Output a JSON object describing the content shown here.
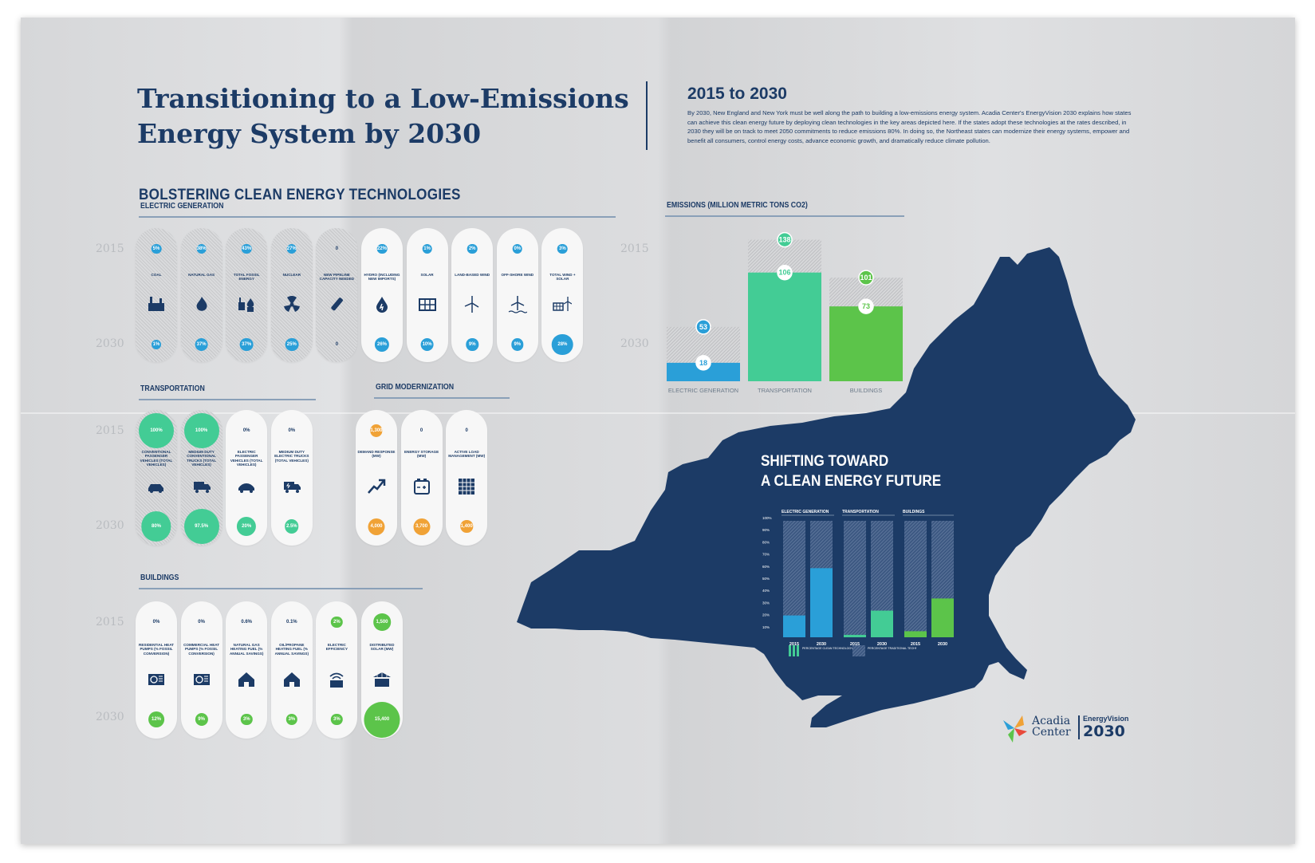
{
  "title_line1": "Transitioning to a Low-Emissions",
  "title_line2": "Energy System by 2030",
  "period_heading": "2015 to 2030",
  "intro": "By 2030, New England and New York must be well along the path to building a low-emissions energy system. Acadia Center's EnergyVision 2030 explains how states can achieve this clean energy future by deploying clean technologies in the key areas depicted here. If the states adopt these technologies at the rates described, in 2030 they will be on track to meet 2050 commitments to reduce emissions 80%. In doing so, the Northeast states can modernize their energy systems, empower and benefit all consumers, control energy costs, advance economic growth, and dramatically reduce climate pollution.",
  "main_heading": "BOLSTERING CLEAN ENERGY TECHNOLOGIES",
  "years": {
    "start": "2015",
    "end": "2030"
  },
  "colors": {
    "navy": "#1c3b66",
    "blue": "#2a9fd8",
    "teal": "#43cc95",
    "green": "#5cc44a",
    "orange": "#f0a236"
  },
  "electric": {
    "heading": "ELECTRIC GENERATION",
    "pills": [
      {
        "label": "COAL",
        "icon": "power-plant-icon",
        "start": "5%",
        "end": "1%",
        "style": "hatch",
        "color": "blue",
        "endSize": 0.35
      },
      {
        "label": "NATURAL GAS",
        "icon": "flame-icon",
        "start": "38%",
        "end": "37%",
        "style": "hatch",
        "color": "blue",
        "endSize": 0.6
      },
      {
        "label": "TOTAL FOSSIL ENERGY",
        "icon": "fossil-icon",
        "start": "43%",
        "end": "37%",
        "style": "hatch",
        "color": "blue",
        "endSize": 0.6
      },
      {
        "label": "NUCLEAR",
        "icon": "nuclear-icon",
        "start": "27%",
        "end": "25%",
        "style": "hatch",
        "color": "blue",
        "endSize": 0.6
      },
      {
        "label": "NEW PIPELINE CAPACITY NEEDED",
        "icon": "pipeline-icon",
        "start": "0",
        "end": "0",
        "style": "hatch",
        "color": "none",
        "endSize": 0
      },
      {
        "label": "HYDRO (INCLUDING NEW IMPORTS)",
        "icon": "hydro-drop-icon",
        "start": "22%",
        "end": "26%",
        "style": "white",
        "color": "blue",
        "endSize": 0.65
      },
      {
        "label": "SOLAR",
        "icon": "solar-panel-icon",
        "start": "1%",
        "end": "10%",
        "style": "white",
        "color": "blue",
        "endSize": 0.6
      },
      {
        "label": "LAND-BASED WIND",
        "icon": "wind-turbine-icon",
        "start": "2%",
        "end": "9%",
        "style": "white",
        "color": "blue",
        "endSize": 0.55
      },
      {
        "label": "OFF-SHORE WIND",
        "icon": "offshore-wind-icon",
        "start": "0%",
        "end": "9%",
        "style": "white",
        "color": "blue",
        "endSize": 0.55
      },
      {
        "label": "TOTAL WIND + SOLAR",
        "icon": "wind-solar-icon",
        "start": "3%",
        "end": "28%",
        "style": "white",
        "color": "blue",
        "endSize": 0.95
      }
    ]
  },
  "transportation": {
    "heading": "TRANSPORTATION",
    "pills": [
      {
        "label": "CONVENTIONAL PASSENGER VEHICLES (TOTAL VEHICLES)",
        "icon": "car-icon",
        "start": "100%",
        "end": "80%",
        "style": "hatch",
        "color": "teal",
        "startSize": 1,
        "endSize": 0.85
      },
      {
        "label": "MEDIUM DUTY CONVENTIONAL TRUCKS (TOTAL VEHICLES)",
        "icon": "truck-icon",
        "start": "100%",
        "end": "97.5%",
        "style": "hatch",
        "color": "teal",
        "startSize": 1,
        "endSize": 1
      },
      {
        "label": "ELECTRIC PASSENGER VEHICLES (TOTAL VEHICLES)",
        "icon": "electric-car-icon",
        "start": "0%",
        "end": "20%",
        "style": "white",
        "color": "teal",
        "startSize": 0,
        "endSize": 0.55
      },
      {
        "label": "MEDIUM DUTY ELECTRIC TRUCKS (TOTAL VEHICLES)",
        "icon": "electric-truck-icon",
        "start": "0%",
        "end": "2.5%",
        "style": "white",
        "color": "teal",
        "startSize": 0,
        "endSize": 0.4
      }
    ]
  },
  "grid": {
    "heading": "GRID MODERNIZATION",
    "pills": [
      {
        "label": "DEMAND RESPONSE (MW)",
        "icon": "trend-arrow-icon",
        "start": "1,300",
        "end": "4,000",
        "style": "white",
        "color": "orange",
        "startSize": 0.55,
        "endSize": 0.75
      },
      {
        "label": "ENERGY STORAGE (MW)",
        "icon": "battery-icon",
        "start": "0",
        "end": "3,700",
        "style": "white",
        "color": "orange",
        "startSize": 0,
        "endSize": 0.75
      },
      {
        "label": "ACTIVE LOAD MANAGEMENT (MW)",
        "icon": "grid-icon",
        "start": "0",
        "end": "1,400",
        "style": "white",
        "color": "orange",
        "startSize": 0,
        "endSize": 0.55
      }
    ]
  },
  "buildings": {
    "heading": "BUILDINGS",
    "pills": [
      {
        "label": "RESIDENTIAL HEAT PUMPS (% FOSSIL CONVERSION)",
        "icon": "heat-pump-icon",
        "start": "0%",
        "end": "12%",
        "style": "white",
        "color": "green",
        "startSize": 0,
        "endSize": 0.55
      },
      {
        "label": "COMMERCIAL HEAT PUMPS (% FOSSIL CONVERSION)",
        "icon": "heat-pump-icon",
        "start": "0%",
        "end": "9%",
        "style": "white",
        "color": "green",
        "startSize": 0,
        "endSize": 0.45
      },
      {
        "label": "NATURAL GAS HEATING FUEL (% ANNUAL SAVINGS)",
        "icon": "house-icon",
        "start": "0.6%",
        "end": "3%",
        "style": "white",
        "color": "green",
        "startSize": 0,
        "endSize": 0.4
      },
      {
        "label": "OIL/PROPANE HEATING FUEL (% ANNUAL SAVINGS)",
        "icon": "house-icon",
        "start": "0.1%",
        "end": "3%",
        "style": "white",
        "color": "green",
        "startSize": 0,
        "endSize": 0.4
      },
      {
        "label": "ELECTRIC EFFICIENCY",
        "icon": "wifi-meter-icon",
        "start": "2%",
        "end": "3%",
        "style": "white",
        "color": "green",
        "startSize": 0.4,
        "endSize": 0.4
      },
      {
        "label": "DISTRIBUTED SOLAR (MW)",
        "icon": "rooftop-solar-icon",
        "start": "1,500",
        "end": "15,400",
        "style": "white",
        "color": "green",
        "startSize": 0.6,
        "endSize": 1.25
      }
    ]
  },
  "chart_data": [
    {
      "type": "bar",
      "title": "EMISSIONS (MILLION METRIC TONS CO2)",
      "categories": [
        "ELECTRIC GENERATION",
        "TRANSPORTATION",
        "BUILDINGS"
      ],
      "series": [
        {
          "name": "2015",
          "values": [
            53,
            138,
            101
          ]
        },
        {
          "name": "2030",
          "values": [
            18,
            106,
            73
          ]
        }
      ],
      "bar_colors": [
        "#2a9fd8",
        "#43cc95",
        "#5cc44a"
      ],
      "ylim": [
        0,
        140
      ]
    },
    {
      "type": "bar",
      "title_line1": "SHIFTING TOWARD",
      "title_line2": "A CLEAN ENERGY FUTURE",
      "groups": [
        "ELECTRIC GENERATION",
        "TRANSPORTATION",
        "BUILDINGS"
      ],
      "x": [
        "2015",
        "2030"
      ],
      "values": [
        [
          18,
          57
        ],
        [
          2,
          22
        ],
        [
          5,
          32
        ]
      ],
      "bar_colors": [
        "#2a9fd8",
        "#43cc95",
        "#5cc44a"
      ],
      "y_ticks": [
        "100%",
        "90%",
        "80%",
        "70%",
        "60%",
        "50%",
        "40%",
        "30%",
        "20%",
        "10%"
      ],
      "ylim": [
        0,
        100
      ],
      "legend": [
        {
          "label": "PERCENTAGE CLEAN TECHNOLOGY",
          "style": "solid"
        },
        {
          "label": "PERCENTAGE TRADITIONAL TECHNOLOGY",
          "style": "hatch"
        }
      ]
    }
  ],
  "logo": {
    "org_line1": "Acadia",
    "org_line2": "Center",
    "product": "EnergyVision",
    "product_year": "2030"
  }
}
